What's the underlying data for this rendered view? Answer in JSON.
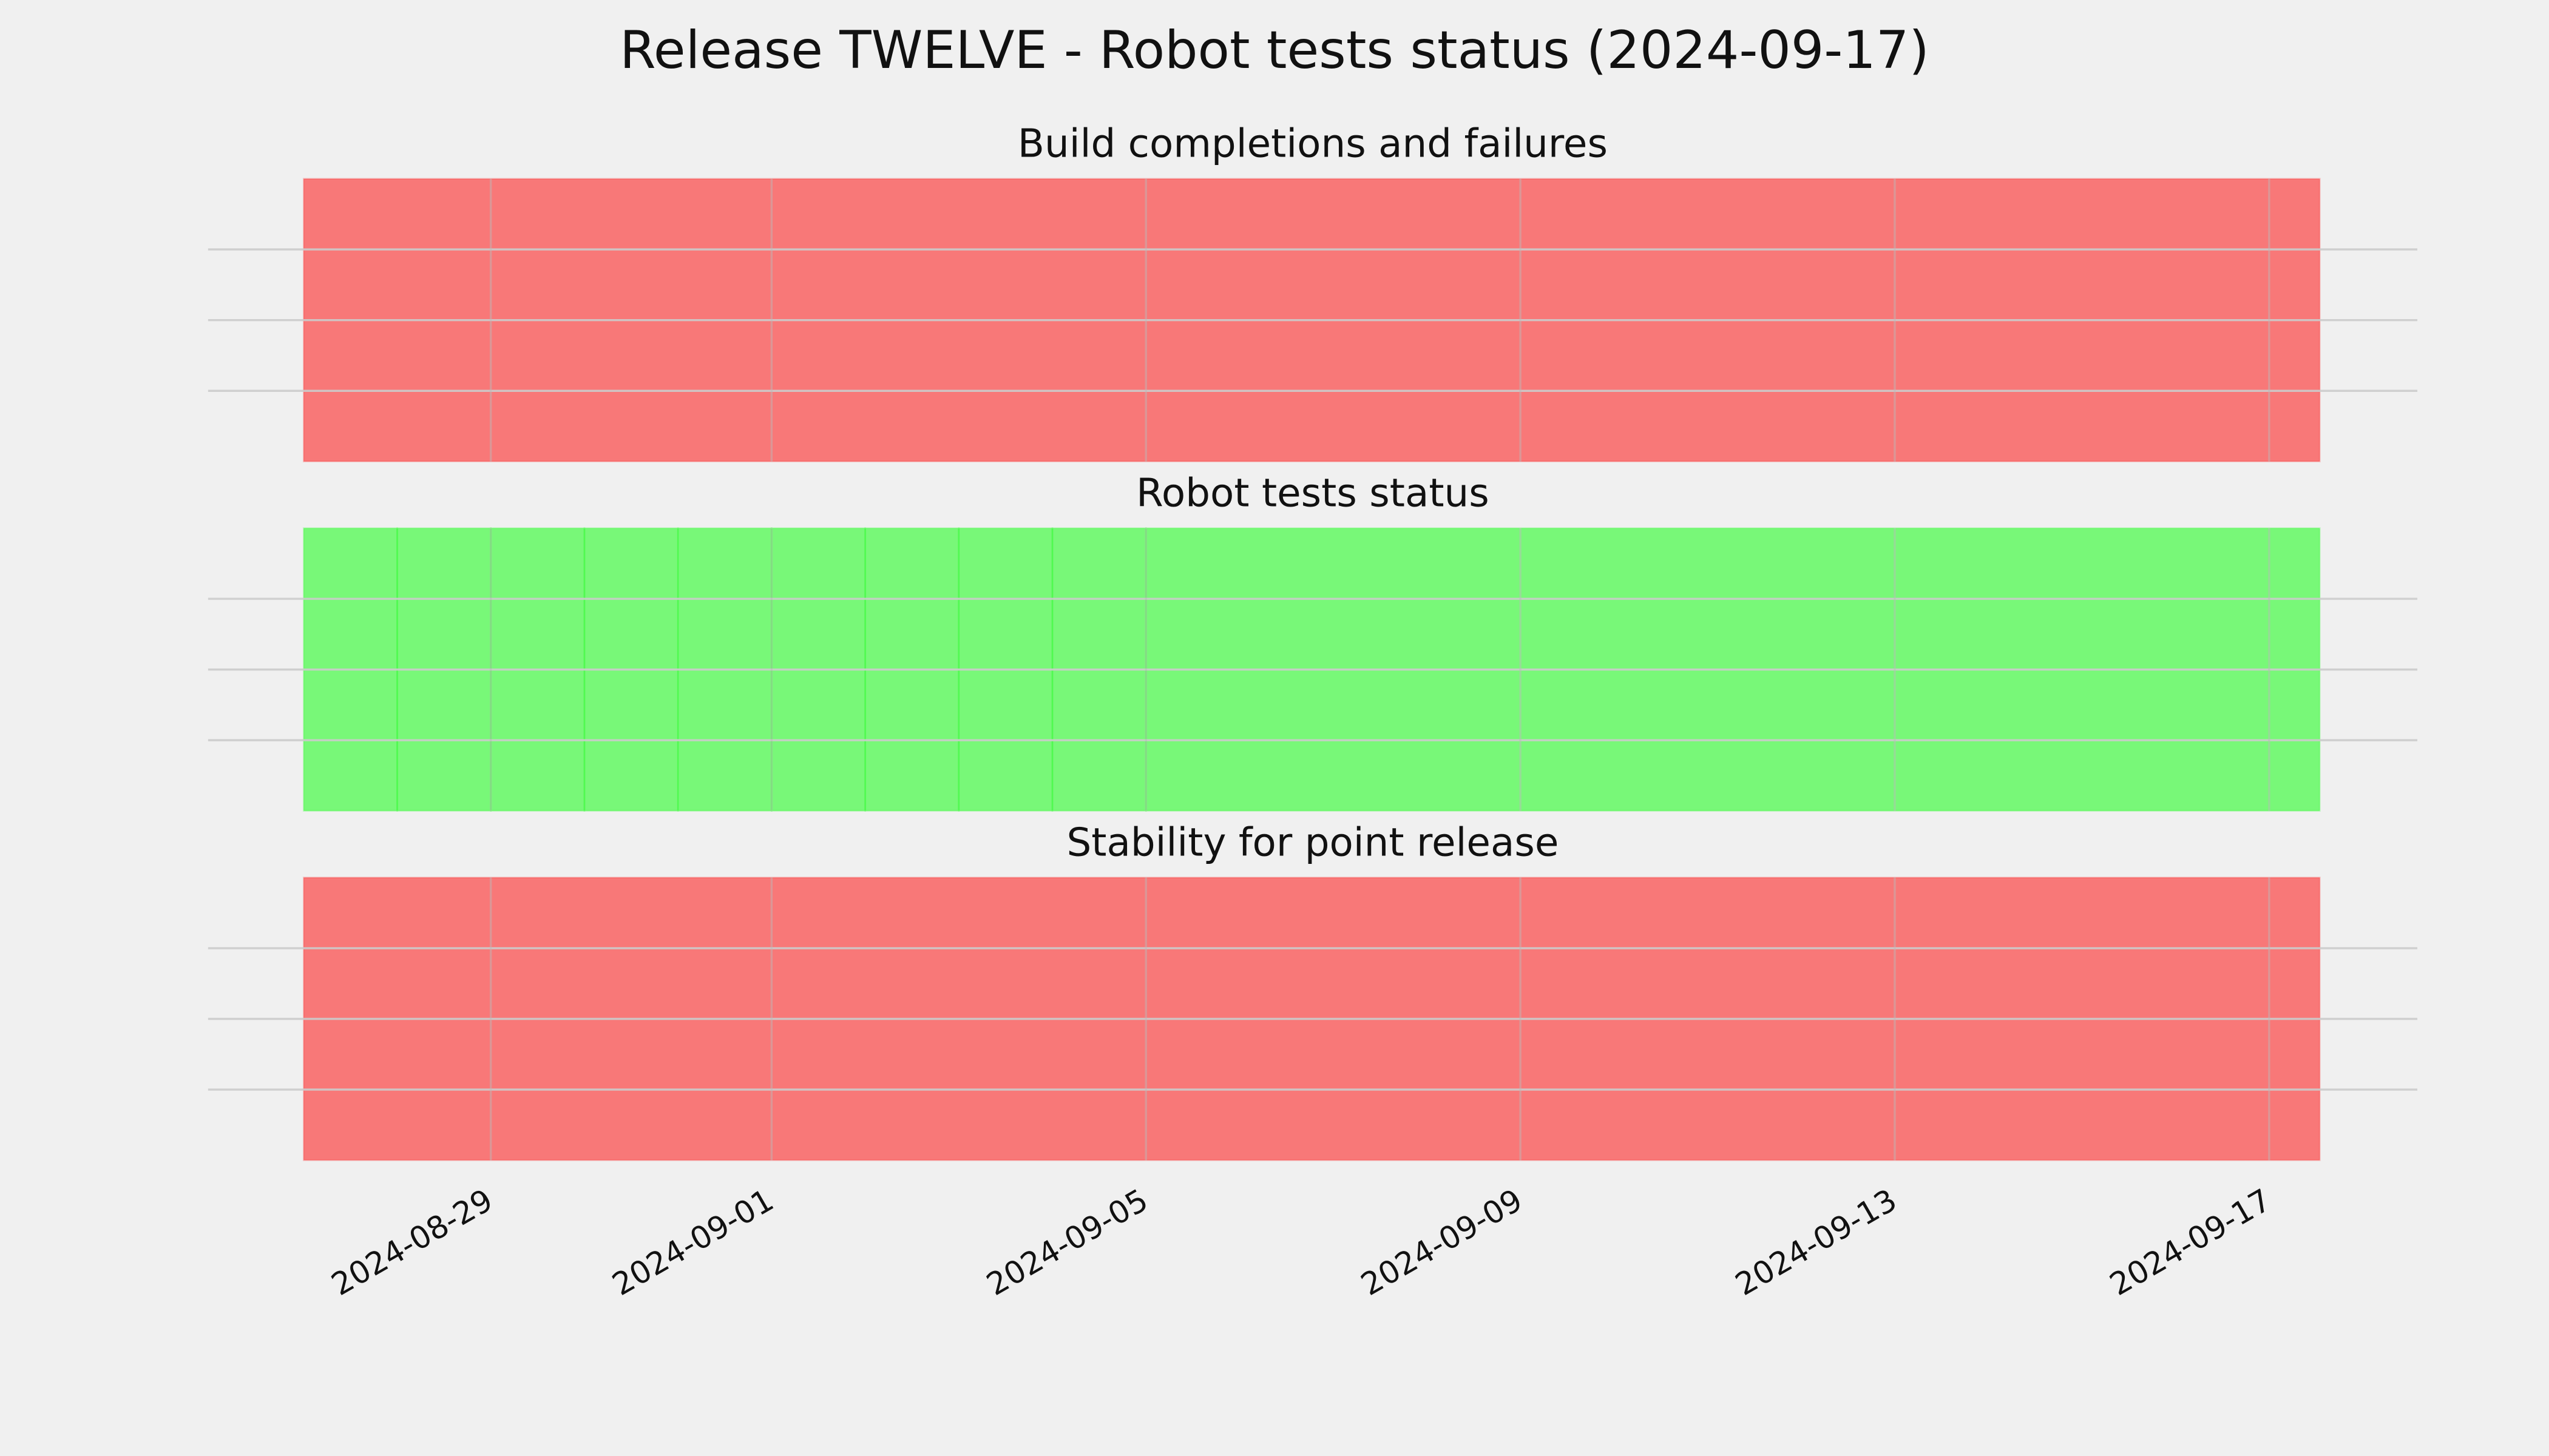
{
  "title": "Release TWELVE - Robot tests status (2024-09-17)",
  "chart_data": [
    {
      "type": "timeline",
      "title": "Build completions and failures",
      "spans": [
        {
          "start": "2024-08-27",
          "end": "2024-09-17T13:00:00Z",
          "status": "failure"
        }
      ],
      "status_colors": {
        "failure": "#ff0000",
        "success": "#00ff00"
      },
      "alpha": 0.5,
      "xlim": [
        "2024-08-25T23:30:00Z",
        "2024-09-18T14:00:00Z"
      ],
      "xticks": [
        "2024-08-29",
        "2024-09-01",
        "2024-09-05",
        "2024-09-09",
        "2024-09-13",
        "2024-09-17"
      ],
      "ylim": [
        0,
        1
      ],
      "yticks": [
        0.25,
        0.5,
        0.75
      ],
      "grid": true,
      "xtick_labels": false
    },
    {
      "type": "timeline",
      "title": "Robot tests status",
      "spans": [
        {
          "start": "2024-08-27",
          "end": "2024-08-28",
          "status": "success"
        },
        {
          "start": "2024-08-28",
          "end": "2024-08-29",
          "status": "success"
        },
        {
          "start": "2024-08-29",
          "end": "2024-08-30",
          "status": "success"
        },
        {
          "start": "2024-08-30",
          "end": "2024-08-31",
          "status": "success"
        },
        {
          "start": "2024-08-31",
          "end": "2024-09-01",
          "status": "success"
        },
        {
          "start": "2024-09-01",
          "end": "2024-09-02",
          "status": "success"
        },
        {
          "start": "2024-09-02",
          "end": "2024-09-03",
          "status": "success"
        },
        {
          "start": "2024-09-03",
          "end": "2024-09-04",
          "status": "success"
        },
        {
          "start": "2024-09-04",
          "end": "2024-09-05",
          "status": "success"
        },
        {
          "start": "2024-09-05",
          "end": "2024-09-17T13:00:00Z",
          "status": "success"
        }
      ],
      "status_colors": {
        "failure": "#ff0000",
        "success": "#00ff00"
      },
      "alpha": 0.5,
      "xlim": [
        "2024-08-25T23:30:00Z",
        "2024-09-18T14:00:00Z"
      ],
      "xticks": [
        "2024-08-29",
        "2024-09-01",
        "2024-09-05",
        "2024-09-09",
        "2024-09-13",
        "2024-09-17"
      ],
      "ylim": [
        0,
        1
      ],
      "yticks": [
        0.25,
        0.5,
        0.75
      ],
      "grid": true,
      "xtick_labels": false
    },
    {
      "type": "timeline",
      "title": "Stability for point release",
      "spans": [
        {
          "start": "2024-08-27",
          "end": "2024-09-17T13:00:00Z",
          "status": "failure"
        }
      ],
      "status_colors": {
        "failure": "#ff0000",
        "success": "#00ff00"
      },
      "alpha": 0.5,
      "xlim": [
        "2024-08-25T23:30:00Z",
        "2024-09-18T14:00:00Z"
      ],
      "xticks": [
        "2024-08-29",
        "2024-09-01",
        "2024-09-05",
        "2024-09-09",
        "2024-09-13",
        "2024-09-17"
      ],
      "ylim": [
        0,
        1
      ],
      "yticks": [
        0.25,
        0.5,
        0.75
      ],
      "grid": true,
      "xtick_labels": true
    }
  ]
}
